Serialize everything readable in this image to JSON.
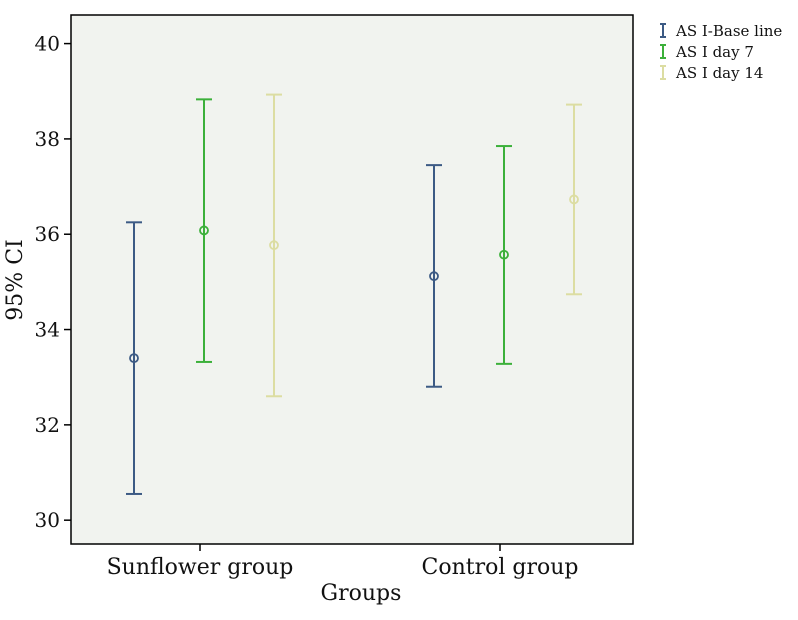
{
  "chart_data": {
    "type": "errorbar",
    "xlabel": "Groups",
    "ylabel": "95% CI",
    "ylim": [
      29.5,
      40.6
    ],
    "yticks": [
      30,
      32,
      34,
      36,
      38,
      40
    ],
    "ytick_labels": [
      "30",
      "32",
      "34",
      "36",
      "38",
      "40"
    ],
    "categories": [
      "Sunflower group",
      "Control group"
    ],
    "legend_position": "top-right, outside plot",
    "background": "#f1f3ef",
    "series": [
      {
        "name": "AS I-Base line",
        "color": "#3c5a84",
        "marker": "circle",
        "points": [
          {
            "category": "Sunflower group",
            "mean": 33.4,
            "low": 30.55,
            "high": 36.25
          },
          {
            "category": "Control group",
            "mean": 35.12,
            "low": 32.8,
            "high": 37.45
          }
        ]
      },
      {
        "name": "AS I day 7",
        "color": "#3cb03a",
        "marker": "circle",
        "points": [
          {
            "category": "Sunflower group",
            "mean": 36.08,
            "low": 33.32,
            "high": 38.83
          },
          {
            "category": "Control group",
            "mean": 35.57,
            "low": 33.28,
            "high": 37.85
          }
        ]
      },
      {
        "name": "AS I day 14",
        "color": "#dcdda2",
        "marker": "circle",
        "points": [
          {
            "category": "Sunflower group",
            "mean": 35.77,
            "low": 32.6,
            "high": 38.93
          },
          {
            "category": "Control group",
            "mean": 36.73,
            "low": 34.74,
            "high": 38.72
          }
        ]
      }
    ]
  }
}
